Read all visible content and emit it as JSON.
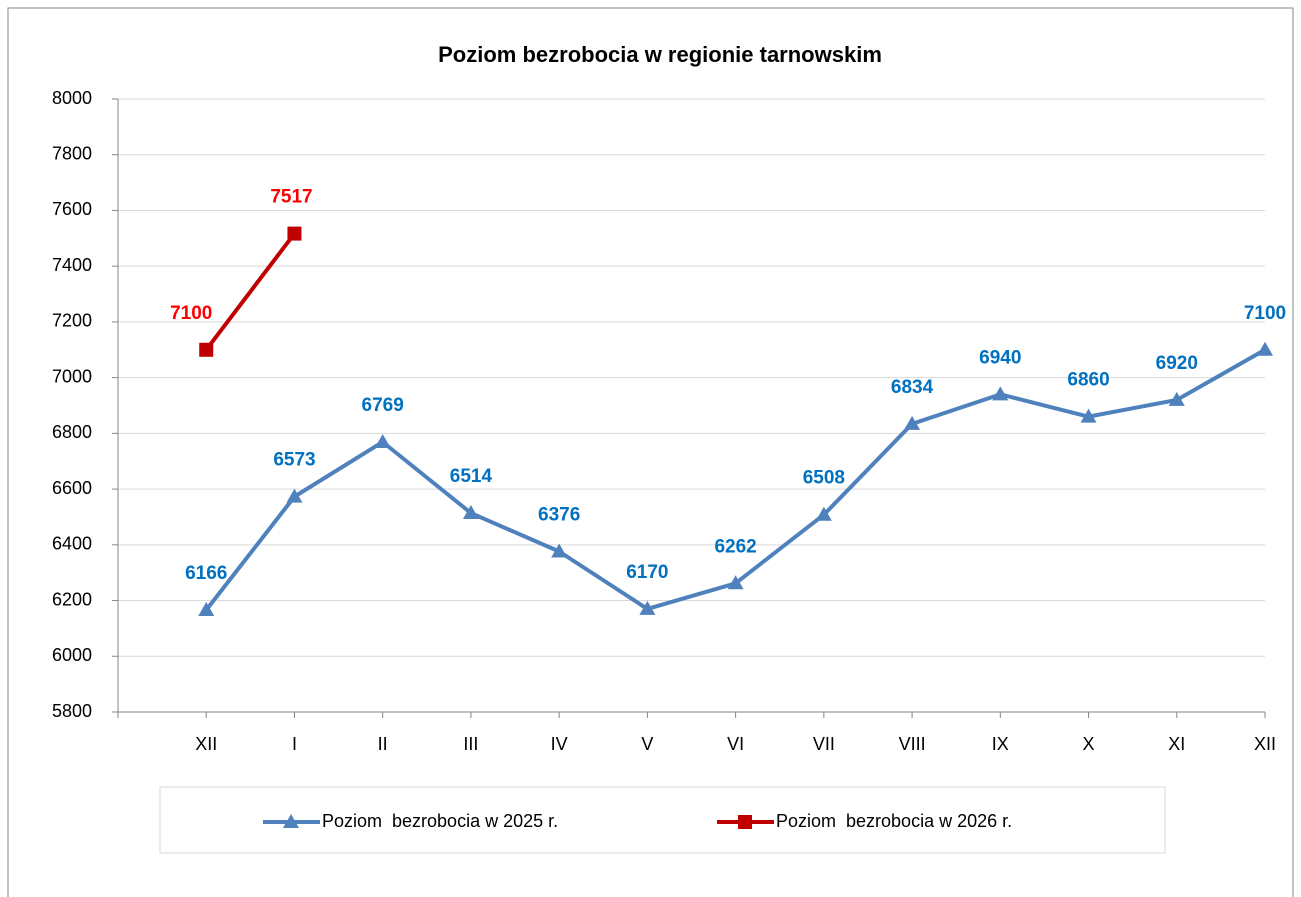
{
  "chart_data": {
    "type": "line",
    "title": "Poziom bezrobocia w regionie tarnowskim",
    "categories": [
      "XII",
      "I",
      "II",
      "III",
      "IV",
      "V",
      "VI",
      "VII",
      "VIII",
      "IX",
      "X",
      "XI",
      "XII"
    ],
    "series": [
      {
        "name": "Poziom  bezrobocia w 2025 r.",
        "color": "#4f81bd",
        "label_color": "#0070c0",
        "marker": "triangle",
        "values": [
          6166,
          6573,
          6769,
          6514,
          6376,
          6170,
          6262,
          6508,
          6834,
          6940,
          6860,
          6920,
          7100
        ]
      },
      {
        "name": "Poziom  bezrobocia w 2026 r.",
        "color": "#c00000",
        "label_color": "#ff0000",
        "marker": "square",
        "values": [
          7100,
          7517,
          null,
          null,
          null,
          null,
          null,
          null,
          null,
          null,
          null,
          null,
          null
        ]
      }
    ],
    "ylim": [
      5800,
      8000
    ],
    "yticks": [
      5800,
      6000,
      6200,
      6400,
      6600,
      6800,
      7000,
      7200,
      7400,
      7600,
      7800,
      8000
    ],
    "grid": true,
    "legend": "bottom"
  }
}
